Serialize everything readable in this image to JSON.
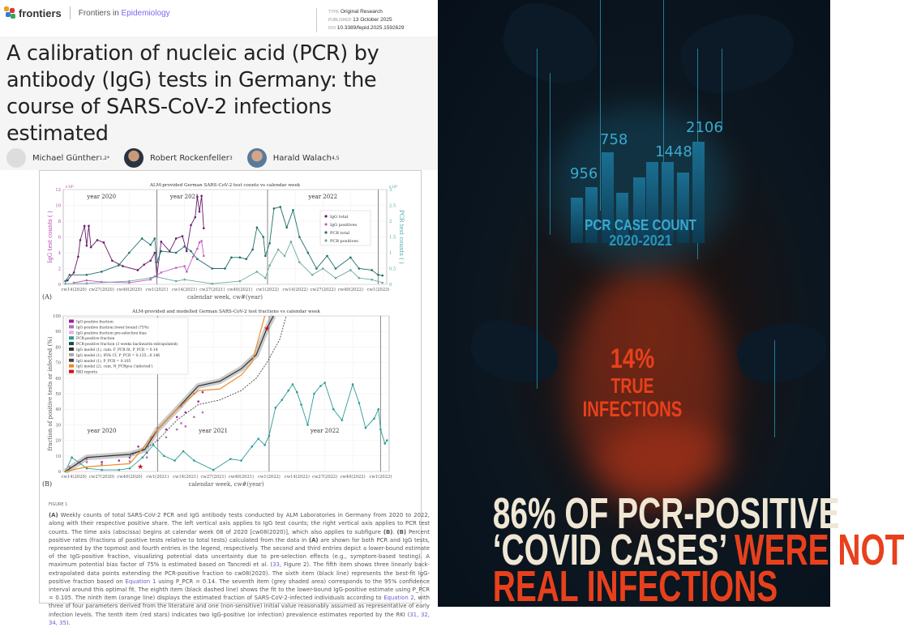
{
  "header": {
    "brand": "frontiers",
    "journal_prefix": "Frontiers in",
    "journal_name": "Epidemiology",
    "type_label": "TYPE",
    "type": "Original Research",
    "published_label": "PUBLISHED",
    "published": "13 October 2025",
    "doi_label": "DOI",
    "doi": "10.3389/fepid.2025.1592629"
  },
  "article": {
    "title": "A calibration of nucleic acid (PCR) by antibody (IgG) tests in Germany: the course of SARS-CoV-2 infections estimated",
    "authors": [
      {
        "name": "Michael Günther",
        "sup": "1,2*"
      },
      {
        "name": "Robert Rockenfeller",
        "sup": "3"
      },
      {
        "name": "Harald Walach",
        "sup": "4,5"
      }
    ]
  },
  "chart_data": [
    {
      "type": "line",
      "panel": "(A)",
      "title": "ALM-provided German SARS-CoV-2 test counts vs calendar week",
      "xlabel": "calendar week, cw#(year)",
      "ylabel": "IgG test counts ( )",
      "ylabel_right": "PCR test counts ( )",
      "y_exponent": "×10³",
      "y_right_exponent": "×10⁶",
      "ylim": [
        0,
        12
      ],
      "ylim_right": [
        0,
        3
      ],
      "yticks": [
        0,
        2,
        4,
        6,
        8,
        10,
        12
      ],
      "yticks_right": [
        0,
        0.5,
        1,
        1.5,
        2,
        2.5,
        3
      ],
      "xticks": [
        "cw14(2020)",
        "cw27(2020)",
        "cw40(2020)",
        "cw1(2021)",
        "cw14(2021)",
        "cw27(2021)",
        "cw40(2021)",
        "cw1(2022)",
        "cw14(2022)",
        "cw27(2022)",
        "cw40(2022)",
        "cw1(2023)"
      ],
      "year_labels": [
        {
          "text": "year 2020",
          "at": "cw27(2020)"
        },
        {
          "text": "year 2021",
          "at": "cw14(2021)"
        },
        {
          "text": "year 2022",
          "at": "cw27(2022)"
        }
      ],
      "year_dividers": [
        "cw1(2021)",
        "cw1(2022)",
        "cw1(2023)"
      ],
      "legend": "top-right",
      "grid": true,
      "series": [
        {
          "name": "IgG total",
          "axis": "left",
          "color": "#6a1b6a",
          "x": [
            "cw11(2020)",
            "cw14(2020)",
            "cw16(2020)",
            "cw17(2020)",
            "cw19(2020)",
            "cw20(2020)",
            "cw21(2020)",
            "cw22(2020)",
            "cw25(2020)",
            "cw28(2020)",
            "cw32(2020)",
            "cw37(2020)",
            "cw44(2020)",
            "cw47(2020)",
            "cw50(2020)",
            "cw52(2020)",
            "cw1(2021)",
            "cw3(2021)",
            "cw7(2021)",
            "cw10(2021)",
            "cw13(2021)",
            "cw15(2021)",
            "cw17(2021)",
            "cw19(2021)",
            "cw20(2021)",
            "cw21(2021)",
            "cw22(2021)",
            "cw23(2021)"
          ],
          "y": [
            0.5,
            1.5,
            3.5,
            5.6,
            7.4,
            4.9,
            7.4,
            4.7,
            5.6,
            5.3,
            3.0,
            2.3,
            1.8,
            2.5,
            3.0,
            4.0,
            1.0,
            5.4,
            4.2,
            5.8,
            6.1,
            4.2,
            7.5,
            8.5,
            11.1,
            9.2,
            11.2,
            7.1
          ]
        },
        {
          "name": "IgG positives",
          "axis": "left",
          "color": "#c25ec2",
          "x": [
            "cw14(2020)",
            "cw20(2020)",
            "cw27(2020)",
            "cw40(2020)",
            "cw50(2020)",
            "cw52(2020)",
            "cw3(2021)",
            "cw10(2021)",
            "cw14(2021)",
            "cw15(2021)",
            "cw18(2021)",
            "cw20(2021)",
            "cw21(2021)",
            "cw22(2021)",
            "cw23(2021)"
          ],
          "y": [
            0.2,
            0.5,
            0.3,
            0.2,
            0.6,
            1.0,
            1.5,
            2.1,
            2.3,
            1.6,
            3.5,
            4.5,
            5.3,
            5.5,
            3.6
          ]
        },
        {
          "name": "PCR total",
          "axis": "right",
          "color": "#1f6f6a",
          "x": [
            "cw10(2020)",
            "cw12(2020)",
            "cw20(2020)",
            "cw27(2020)",
            "cw35(2020)",
            "cw40(2020)",
            "cw46(2020)",
            "cw50(2020)",
            "cw52(2020)",
            "cw1(2021)",
            "cw3(2021)",
            "cw10(2021)",
            "cw14(2021)",
            "cw17(2021)",
            "cw20(2021)",
            "cw27(2021)",
            "cw33(2021)",
            "cw36(2021)",
            "cw40(2021)",
            "cw43(2021)",
            "cw46(2021)",
            "cw48(2021)",
            "cw51(2021)",
            "cw52(2021)",
            "cw2(2022)",
            "cw4(2022)",
            "cw7(2022)",
            "cw10(2022)",
            "cw13(2022)",
            "cw16(2022)",
            "cw20(2022)",
            "cw24(2022)",
            "cw29(2022)",
            "cw33(2022)",
            "cw40(2022)",
            "cw44(2022)",
            "cw50(2022)",
            "cw1(2023)",
            "cw3(2023)"
          ],
          "y": [
            0.1,
            0.3,
            0.3,
            0.4,
            0.6,
            1.0,
            1.45,
            1.25,
            1.45,
            0.7,
            1.05,
            1.0,
            1.2,
            1.05,
            0.8,
            0.5,
            0.5,
            0.85,
            0.85,
            0.8,
            1.1,
            1.8,
            1.5,
            0.9,
            1.3,
            2.4,
            2.45,
            1.8,
            2.35,
            1.5,
            1.0,
            0.5,
            0.9,
            0.5,
            0.85,
            0.5,
            0.45,
            0.3,
            0.28
          ]
        },
        {
          "name": "PCR positives",
          "axis": "right",
          "color": "#6fa8a0",
          "x": [
            "cw10(2020)",
            "cw20(2020)",
            "cw40(2020)",
            "cw50(2020)",
            "cw52(2020)",
            "cw10(2021)",
            "cw14(2021)",
            "cw27(2021)",
            "cw40(2021)",
            "cw48(2021)",
            "cw52(2021)",
            "cw2(2022)",
            "cw6(2022)",
            "cw9(2022)",
            "cw12(2022)",
            "cw16(2022)",
            "cw22(2022)",
            "cw27(2022)",
            "cw33(2022)",
            "cw40(2022)",
            "cw44(2022)",
            "cw50(2022)",
            "cw3(2023)"
          ],
          "y": [
            0.02,
            0.03,
            0.1,
            0.2,
            0.25,
            0.1,
            0.15,
            0.02,
            0.1,
            0.4,
            0.2,
            0.6,
            1.1,
            0.9,
            1.35,
            0.7,
            0.3,
            0.5,
            0.2,
            0.45,
            0.2,
            0.15,
            0.05
          ]
        }
      ]
    },
    {
      "type": "line",
      "panel": "(B)",
      "title": "ALM-provided and modelled German SARS-CoV-2 test fractions vs calendar week",
      "xlabel": "calendar week, cw#(year)",
      "ylabel": "fraction of positive tests or infected (%)",
      "ylim": [
        0,
        100
      ],
      "yticks": [
        0,
        10,
        20,
        30,
        40,
        50,
        60,
        70,
        80,
        90,
        100
      ],
      "xticks": [
        "cw14(2020)",
        "cw27(2020)",
        "cw40(2020)",
        "cw1(2021)",
        "cw14(2021)",
        "cw27(2021)",
        "cw40(2021)",
        "cw1(2022)",
        "cw14(2022)",
        "cw27(2022)",
        "cw40(2022)",
        "cw1(2023)"
      ],
      "year_labels": [
        {
          "text": "year 2020",
          "at": "cw27(2020)",
          "y": 25
        },
        {
          "text": "year 2021",
          "at": "cw27(2021)",
          "y": 25
        },
        {
          "text": "year 2022",
          "at": "cw27(2022)",
          "y": 25
        }
      ],
      "year_dividers": [
        "cw1(2021)",
        "cw1(2022)",
        "cw1(2023)"
      ],
      "legend": "top-left",
      "grid": true,
      "legend_entries": [
        "IgG-positive fraction",
        "IgG-positive fraction lower bound (75%)",
        "IgG-positive fraction pre-selection bias",
        "PCR-positive fraction",
        "PCR-positive fraction (3 weeks backwards extrapolated)",
        "IgG model (1), cum. F_PCR fit, P_PCR = 0.14",
        "IgG model (1), 95% CI, P_PCR = 0.135...0.146",
        "IgG model (1), P_PCR = 0.105",
        "IgG model (2), cum. N_PCRpos ('infected')",
        "RKI reports"
      ],
      "series": [
        {
          "name": "IgG-positive fraction",
          "color": "#a020a0",
          "style": "markers",
          "x": [
            "cw12(2020)",
            "cw16(2020)",
            "cw20(2020)",
            "cw27(2020)",
            "cw35(2020)",
            "cw40(2020)",
            "cw44(2020)",
            "cw48(2020)",
            "cw50(2020)",
            "cw52(2020)",
            "cw1(2021)",
            "cw5(2021)",
            "cw10(2021)",
            "cw12(2021)",
            "cw14(2021)",
            "cw18(2021)",
            "cw20(2021)",
            "cw22(2021)"
          ],
          "y": [
            3,
            6,
            8,
            6,
            7,
            9,
            16,
            12,
            22,
            25,
            28,
            27,
            35,
            42,
            38,
            50,
            45,
            51
          ]
        },
        {
          "name": "IgG-positive fraction lower bound (75%)",
          "color": "#b070b0",
          "style": "markers",
          "x": [
            "cw12(2020)",
            "cw20(2020)",
            "cw27(2020)",
            "cw40(2020)",
            "cw48(2020)",
            "cw1(2021)",
            "cw5(2021)",
            "cw10(2021)",
            "cw12(2021)",
            "cw14(2021)",
            "cw18(2021)",
            "cw22(2021)"
          ],
          "y": [
            2,
            6,
            4.5,
            6.5,
            9,
            20,
            22,
            27,
            31,
            29,
            35,
            38
          ]
        },
        {
          "name": "PCR-positive fraction",
          "color": "#2a9d95",
          "style": "line-markers",
          "x": [
            "cw10(2020)",
            "cw13(2020)",
            "cw17(2020)",
            "cw20(2020)",
            "cw27(2020)",
            "cw35(2020)",
            "cw40(2020)",
            "cw46(2020)",
            "cw51(2020)",
            "cw4(2021)",
            "cw9(2021)",
            "cw13(2021)",
            "cw18(2021)",
            "cw27(2021)",
            "cw35(2021)",
            "cw40(2021)",
            "cw45(2021)",
            "cw48(2021)",
            "cw51(2021)",
            "cw1(2022)",
            "cw4(2022)",
            "cw7(2022)",
            "cw10(2022)",
            "cw12(2022)",
            "cw14(2022)",
            "cw16(2022)",
            "cw19(2022)",
            "cw22(2022)",
            "cw25(2022)",
            "cw27(2022)",
            "cw31(2022)",
            "cw35(2022)",
            "cw40(2022)",
            "cw43(2022)",
            "cw46(2022)",
            "cw50(2022)",
            "cw52(2022)",
            "cw1(2023)",
            "cw3(2023)",
            "cw4(2023)"
          ],
          "y": [
            0,
            9,
            5,
            2,
            1,
            1,
            2,
            9,
            17,
            10,
            7,
            13,
            7,
            1,
            8,
            7,
            16,
            21,
            17,
            23,
            41,
            46,
            52,
            56,
            51,
            43,
            30,
            50,
            55,
            57,
            40,
            33,
            56,
            44,
            28,
            34,
            40,
            27,
            18,
            20
          ]
        },
        {
          "name": "IgG model (1), cum. F_PCR fit, P_PCR = 0.14",
          "color": "#333333",
          "style": "line",
          "band": true,
          "x": [
            "cw10(2020)",
            "cw20(2020)",
            "cw40(2020)",
            "cw47(2020)",
            "cw1(2021)",
            "cw10(2021)",
            "cw20(2021)",
            "cw30(2021)",
            "cw40(2021)",
            "cw47(2021)",
            "cw52(2021)",
            "cw3(2022)"
          ],
          "y": [
            0,
            9,
            11,
            14,
            27,
            40,
            55,
            58,
            66,
            75,
            92,
            100
          ]
        },
        {
          "name": "IgG model (1), P_PCR = 0.105",
          "color": "#444444",
          "style": "dashed",
          "x": [
            "cw40(2020)",
            "cw50(2020)",
            "cw1(2021)",
            "cw10(2021)",
            "cw20(2021)",
            "cw30(2021)",
            "cw40(2021)",
            "cw47(2021)",
            "cw52(2021)",
            "cw6(2022)",
            "cw9(2022)"
          ],
          "y": [
            10,
            17,
            20,
            33,
            43,
            46,
            52,
            60,
            70,
            85,
            100
          ]
        },
        {
          "name": "IgG model (2), cum. N_PCRpos ('infected')",
          "color": "#f08a24",
          "style": "line",
          "x": [
            "cw10(2020)",
            "cw20(2020)",
            "cw40(2020)",
            "cw45(2020)",
            "cw1(2021)",
            "cw10(2021)",
            "cw20(2021)",
            "cw30(2021)",
            "cw40(2021)",
            "cw45(2021)",
            "cw50(2021)",
            "cw51(2021)"
          ],
          "y": [
            0,
            3,
            5,
            13,
            27,
            40,
            52,
            53,
            62,
            70,
            95,
            100
          ]
        },
        {
          "name": "RKI reports",
          "color": "#d01010",
          "style": "stars",
          "x": [
            "cw45(2020)",
            "cw52(2021)"
          ],
          "y": [
            3,
            92
          ]
        }
      ]
    }
  ],
  "figure": {
    "label": "FIGURE 1",
    "caption_parts": [
      {
        "b": "(A)"
      },
      {
        "t": " Weekly counts of total SARS-CoV-2 PCR and IgG antibody tests conducted by ALM Laboratories in Germany from 2020 to 2022, along with their respective positive share. The left vertical axis applies to IgG test counts; the right vertical axis applies to PCR test counts. The time axis (abscissa) begins at calendar week 08 of 2020 [cw08(2020)], which also applies to subfigure "
      },
      {
        "b": "(B)"
      },
      {
        "t": ". "
      },
      {
        "b": "(B)"
      },
      {
        "t": " Percent positive rates (fractions of positive tests relative to total tests) calculated from the data in "
      },
      {
        "b": "(A)"
      },
      {
        "t": " are shown for both PCR and IgG tests, represented by the topmost and fourth entries in the legend, respectively. The second and third entries depict a lower-bound estimate of the IgG-positive fraction, visualizing potential data uncertainty due to pre-selection effects (e.g., symptom-based testing). A maximum potential bias factor of 75% is estimated based on Tancredi et al. ("
      },
      {
        "a": "33"
      },
      {
        "t": ", Figure 2). The fifth item shows three linearly back-extrapolated data points extending the PCR-positive fraction to cw08(2020). The sixth item (black line) represents the best-fit IgG-positive fraction based on "
      },
      {
        "a": "Equation 1"
      },
      {
        "t": " using P_PCR = 0.14. The seventh item (grey shaded area) corresponds to the 95% confidence interval around this optimal fit. The eighth item (black dashed line) shows the fit to the lower-bound IgG-positive estimate using P_PCR = 0.105. The ninth item (orange line) displays the estimated fraction of SARS-CoV-2-infected individuals according to "
      },
      {
        "a": "Equation 2"
      },
      {
        "t": ", with three of four parameters derived from the literature and one (non-sensitive) initial value reasonably assumed as representative of early infection levels. The tenth item (red stars) indicates two IgG-positive (or infection) prevalence estimates reported by the RKI ("
      },
      {
        "a": "31, 32, 34, 35"
      },
      {
        "t": ")."
      }
    ]
  },
  "poster": {
    "bar_labels": [
      "956",
      "758",
      "1448",
      "2106"
    ],
    "bar_levels": [
      0.45,
      0.55,
      0.9,
      0.5,
      0.65,
      0.8,
      0.8,
      0.7,
      1.0
    ],
    "count_title": "PCR CASE COUNT",
    "count_years": "2020-2021",
    "pct": "14%",
    "pct_line1": "TRUE",
    "pct_line2": "INFECTIONS",
    "headline_1": "86% OF PCR-POSITIVE",
    "headline_2a": "‘COVID CASES’",
    "headline_2b": "WERE NOT",
    "headline_3": "REAL INFECTIONS",
    "colors": {
      "accent_red": "#e8401c",
      "cream": "#efe6d4",
      "cyan": "#3aa9cf"
    }
  }
}
